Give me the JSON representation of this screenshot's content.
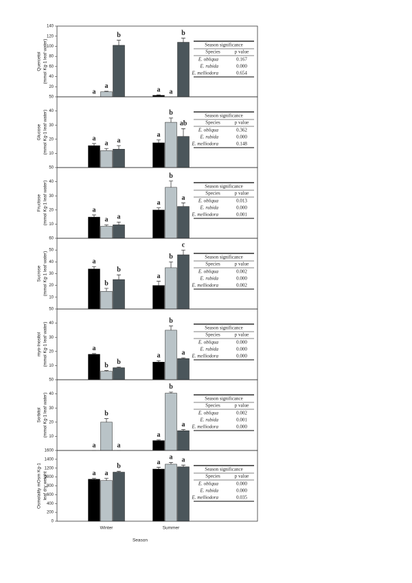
{
  "chart_data": [
    {
      "type": "bar",
      "ylabel": [
        "Quercetol",
        "(mmol Kg-1 leaf water)"
      ],
      "ylim": [
        0,
        140
      ],
      "yticks": [
        20,
        40,
        60,
        80,
        100,
        120,
        140
      ],
      "series": [
        {
          "color": "#000000",
          "values": [
            0,
            3
          ],
          "errors": [
            0,
            1
          ],
          "letters": [
            "a",
            "a"
          ]
        },
        {
          "color": "#b9c3c7",
          "values": [
            10,
            0
          ],
          "errors": [
            1,
            0
          ],
          "letters": [
            "a",
            "a"
          ]
        },
        {
          "color": "#4b565b",
          "values": [
            102,
            108
          ],
          "errors": [
            10,
            8
          ],
          "letters": [
            "b",
            "b"
          ]
        }
      ],
      "table": {
        "title": "Season significance",
        "header": [
          "Species",
          "p value"
        ],
        "rows": [
          [
            "E. obliqua",
            "0.167"
          ],
          [
            "E. rubida",
            "0.000"
          ],
          [
            "E. melliodora",
            "0.654"
          ]
        ]
      }
    },
    {
      "type": "bar",
      "ylabel": [
        "Glucose",
        "(mmol Kg-1 leaf water)"
      ],
      "ylim": [
        0,
        50
      ],
      "yticks": [
        10,
        20,
        30,
        40,
        50
      ],
      "series": [
        {
          "color": "#000000",
          "values": [
            15.5,
            17.5
          ],
          "errors": [
            1.5,
            2
          ],
          "letters": [
            "a",
            "a"
          ]
        },
        {
          "color": "#b9c3c7",
          "values": [
            12,
            32
          ],
          "errors": [
            1.5,
            3
          ],
          "letters": [
            "a",
            "b"
          ]
        },
        {
          "color": "#4b565b",
          "values": [
            13,
            22
          ],
          "errors": [
            2.5,
            5.5
          ],
          "letters": [
            "a",
            "ab"
          ]
        }
      ],
      "table": {
        "title": "Season significance",
        "header": [
          "Species",
          "p value"
        ],
        "rows": [
          [
            "E. obliqua",
            "0.362"
          ],
          [
            "E. rubida",
            "0.000"
          ],
          [
            "E. melliodora",
            "0.148"
          ]
        ]
      }
    },
    {
      "type": "bar",
      "ylabel": [
        "Fructose",
        "(mmol Kg-1 leaf water)"
      ],
      "ylim": [
        0,
        50
      ],
      "yticks": [
        10,
        20,
        30,
        40,
        50
      ],
      "series": [
        {
          "color": "#000000",
          "values": [
            15,
            20
          ],
          "errors": [
            1.5,
            1.5
          ],
          "letters": [
            "a",
            "a"
          ]
        },
        {
          "color": "#b9c3c7",
          "values": [
            8.5,
            36
          ],
          "errors": [
            1,
            4.5
          ],
          "letters": [
            "a",
            "b"
          ]
        },
        {
          "color": "#4b565b",
          "values": [
            9.5,
            22.5
          ],
          "errors": [
            2,
            2.5
          ],
          "letters": [
            "a",
            "a"
          ]
        }
      ],
      "table": {
        "title": "Season significance",
        "header": [
          "Species",
          "p value"
        ],
        "rows": [
          [
            "E. obliqua",
            "0.013"
          ],
          [
            "E. rubida",
            "0.000"
          ],
          [
            "E. melliodora",
            "0.001"
          ]
        ]
      }
    },
    {
      "type": "bar",
      "ylabel": [
        "Sucrose",
        "(mmol Kg-1 leaf water)"
      ],
      "ylim": [
        0,
        60
      ],
      "yticks": [
        10,
        20,
        30,
        40,
        50,
        60
      ],
      "series": [
        {
          "color": "#000000",
          "values": [
            34,
            20
          ],
          "errors": [
            2,
            3.5
          ],
          "letters": [
            "a",
            "a"
          ]
        },
        {
          "color": "#b9c3c7",
          "values": [
            15,
            35
          ],
          "errors": [
            2.5,
            5
          ],
          "letters": [
            "b",
            "b"
          ]
        },
        {
          "color": "#4b565b",
          "values": [
            25,
            46
          ],
          "errors": [
            4,
            4
          ],
          "letters": [
            "b",
            "c"
          ]
        }
      ],
      "table": {
        "title": "Season significance",
        "header": [
          "Species",
          "p value"
        ],
        "rows": [
          [
            "E. obliqua",
            "0.002"
          ],
          [
            "E. rubida",
            "0.000"
          ],
          [
            "E. melliodora",
            "0.002"
          ]
        ]
      }
    },
    {
      "type": "bar",
      "ylabel": [
        "myo-Inositol",
        "(mmol Kg-1 leaf water)"
      ],
      "ylim": [
        0,
        50
      ],
      "yticks": [
        10,
        20,
        30,
        40,
        50
      ],
      "series": [
        {
          "color": "#000000",
          "values": [
            18,
            12.5
          ],
          "errors": [
            0.5,
            1
          ],
          "letters": [
            "a",
            "a"
          ]
        },
        {
          "color": "#b9c3c7",
          "values": [
            6,
            35
          ],
          "errors": [
            0.5,
            3
          ],
          "letters": [
            "b",
            "b"
          ]
        },
        {
          "color": "#4b565b",
          "values": [
            8.5,
            15
          ],
          "errors": [
            0.5,
            0.5
          ],
          "letters": [
            "b",
            "a"
          ]
        }
      ],
      "table": {
        "title": "Season significance",
        "header": [
          "Species",
          "p value"
        ],
        "rows": [
          [
            "E. obliqua",
            "0.000"
          ],
          [
            "E. rubida",
            "0.000"
          ],
          [
            "E. melliodora",
            "0.000"
          ]
        ]
      }
    },
    {
      "type": "bar",
      "ylabel": [
        "Sorbitol",
        "(mmol Kg-1 leaf water)"
      ],
      "ylim": [
        0,
        50
      ],
      "yticks": [
        10,
        20,
        30,
        40,
        50
      ],
      "series": [
        {
          "color": "#000000",
          "values": [
            0,
            7
          ],
          "errors": [
            0,
            0.5
          ],
          "letters": [
            "a",
            "a"
          ]
        },
        {
          "color": "#b9c3c7",
          "values": [
            20,
            40.5
          ],
          "errors": [
            2.5,
            0.8
          ],
          "letters": [
            "b",
            "b"
          ]
        },
        {
          "color": "#4b565b",
          "values": [
            0,
            14
          ],
          "errors": [
            0,
            0.8
          ],
          "letters": [
            "a",
            "a"
          ]
        }
      ],
      "table": {
        "title": "Season significance",
        "header": [
          "Species",
          "p value"
        ],
        "rows": [
          [
            "E. obliqua",
            "0.002"
          ],
          [
            "E. rubida",
            "0.001"
          ],
          [
            "E. melliodora",
            "0.000"
          ]
        ]
      }
    },
    {
      "type": "bar",
      "ylabel": [
        "Osmolality mOsm Kg-1",
        "leaf dry weight"
      ],
      "ylim": [
        0,
        1600
      ],
      "yticks": [
        0,
        200,
        400,
        600,
        800,
        1000,
        1200,
        1400,
        1600
      ],
      "categories": [
        "Winter",
        "Summer"
      ],
      "xlabel": "Season",
      "series": [
        {
          "color": "#000000",
          "values": [
            950,
            1180
          ],
          "errors": [
            20,
            40
          ],
          "letters": [
            "a",
            "a"
          ]
        },
        {
          "color": "#b9c3c7",
          "values": [
            920,
            1290
          ],
          "errors": [
            50,
            40
          ],
          "letters": [
            "a",
            "a"
          ]
        },
        {
          "color": "#4b565b",
          "values": [
            1110,
            1230
          ],
          "errors": [
            20,
            40
          ],
          "letters": [
            "b",
            "a"
          ]
        }
      ],
      "table": {
        "title": "Season significance",
        "header": [
          "Species",
          "p value"
        ],
        "rows": [
          [
            "E. obliqua",
            "0.000"
          ],
          [
            "E. rubida",
            "0.000"
          ],
          [
            "E. melliodora",
            "0.035"
          ]
        ]
      }
    }
  ]
}
